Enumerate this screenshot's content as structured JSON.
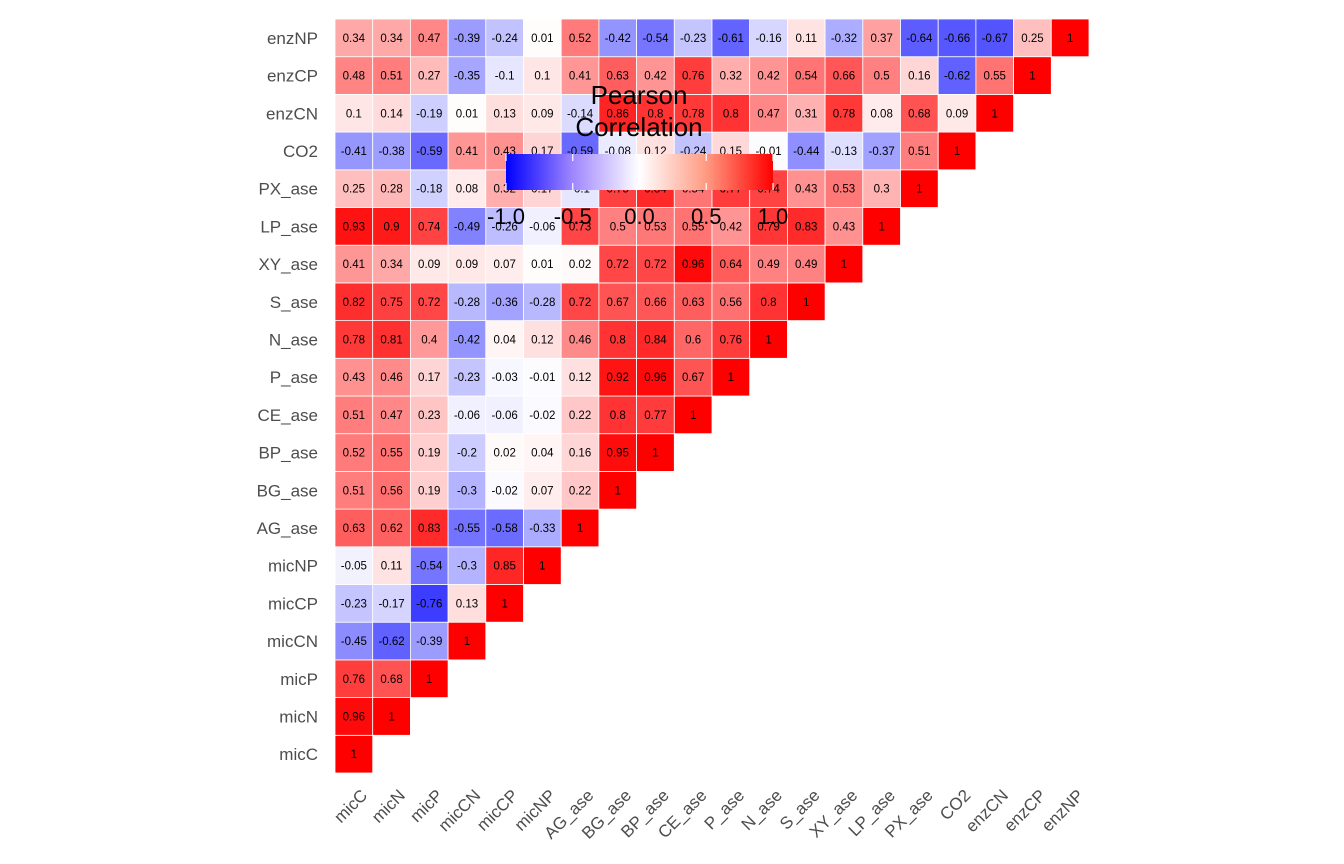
{
  "chart_data": {
    "type": "heatmap",
    "title": "",
    "xlabel": "",
    "ylabel": "",
    "variables": [
      "micC",
      "micN",
      "micP",
      "micCN",
      "micCP",
      "micNP",
      "AG_ase",
      "BG_ase",
      "BP_ase",
      "CE_ase",
      "P_ase",
      "N_ase",
      "S_ase",
      "XY_ase",
      "LP_ase",
      "PX_ase",
      "CO2",
      "enzCN",
      "enzCP",
      "enzNP"
    ],
    "matrix": [
      [
        1
      ],
      [
        0.96,
        1
      ],
      [
        0.76,
        0.68,
        1
      ],
      [
        -0.45,
        -0.62,
        -0.39,
        1
      ],
      [
        -0.23,
        -0.17,
        -0.76,
        0.13,
        1
      ],
      [
        -0.05,
        0.11,
        -0.54,
        -0.3,
        0.85,
        1
      ],
      [
        0.63,
        0.62,
        0.83,
        -0.55,
        -0.58,
        -0.33,
        1
      ],
      [
        0.51,
        0.56,
        0.19,
        -0.3,
        -0.02,
        0.07,
        0.22,
        1
      ],
      [
        0.52,
        0.55,
        0.19,
        -0.2,
        0.02,
        0.04,
        0.16,
        0.95,
        1
      ],
      [
        0.51,
        0.47,
        0.23,
        -0.06,
        -0.06,
        -0.02,
        0.22,
        0.8,
        0.77,
        1
      ],
      [
        0.43,
        0.46,
        0.17,
        -0.23,
        -0.03,
        -0.01,
        0.12,
        0.92,
        0.96,
        0.67,
        1
      ],
      [
        0.78,
        0.81,
        0.4,
        -0.42,
        0.04,
        0.12,
        0.46,
        0.8,
        0.84,
        0.6,
        0.76,
        1
      ],
      [
        0.82,
        0.75,
        0.72,
        -0.28,
        -0.36,
        -0.28,
        0.72,
        0.67,
        0.66,
        0.63,
        0.56,
        0.8,
        1
      ],
      [
        0.41,
        0.34,
        0.09,
        0.09,
        0.07,
        0.01,
        0.02,
        0.72,
        0.72,
        0.96,
        0.64,
        0.49,
        0.49,
        1
      ],
      [
        0.93,
        0.9,
        0.74,
        -0.49,
        -0.26,
        -0.06,
        0.73,
        0.5,
        0.53,
        0.55,
        0.42,
        0.79,
        0.83,
        0.43,
        1
      ],
      [
        0.25,
        0.28,
        -0.18,
        0.08,
        0.32,
        0.17,
        -0.1,
        0.75,
        0.84,
        0.54,
        0.77,
        0.74,
        0.43,
        0.53,
        0.3,
        1
      ],
      [
        -0.41,
        -0.38,
        -0.59,
        0.41,
        0.43,
        0.17,
        -0.59,
        -0.08,
        0.12,
        -0.24,
        0.15,
        -0.01,
        -0.44,
        -0.13,
        -0.37,
        0.51,
        1
      ],
      [
        0.1,
        0.14,
        -0.19,
        0.01,
        0.13,
        0.09,
        -0.14,
        0.86,
        0.8,
        0.78,
        0.8,
        0.47,
        0.31,
        0.78,
        0.08,
        0.68,
        0.09,
        1
      ],
      [
        0.48,
        0.51,
        0.27,
        -0.35,
        -0.1,
        0.1,
        0.41,
        0.63,
        0.42,
        0.76,
        0.32,
        0.42,
        0.54,
        0.66,
        0.5,
        0.16,
        -0.62,
        0.55,
        1
      ],
      [
        0.34,
        0.34,
        0.47,
        -0.39,
        -0.24,
        0.01,
        0.52,
        -0.42,
        -0.54,
        -0.23,
        -0.61,
        -0.16,
        0.11,
        -0.32,
        0.37,
        -0.64,
        -0.66,
        -0.67,
        0.25,
        1
      ]
    ],
    "legend": {
      "title_lines": [
        "Pearson",
        "Correlation"
      ],
      "ticks": [
        "-1.0",
        "-0.5",
        "0.0",
        "0.5",
        "1.0"
      ],
      "range": [
        -1,
        1
      ],
      "placement": "top-left"
    },
    "colors": {
      "low": "#0000ff",
      "mid": "#ffffff",
      "high": "#ff0000"
    },
    "grid": false
  }
}
